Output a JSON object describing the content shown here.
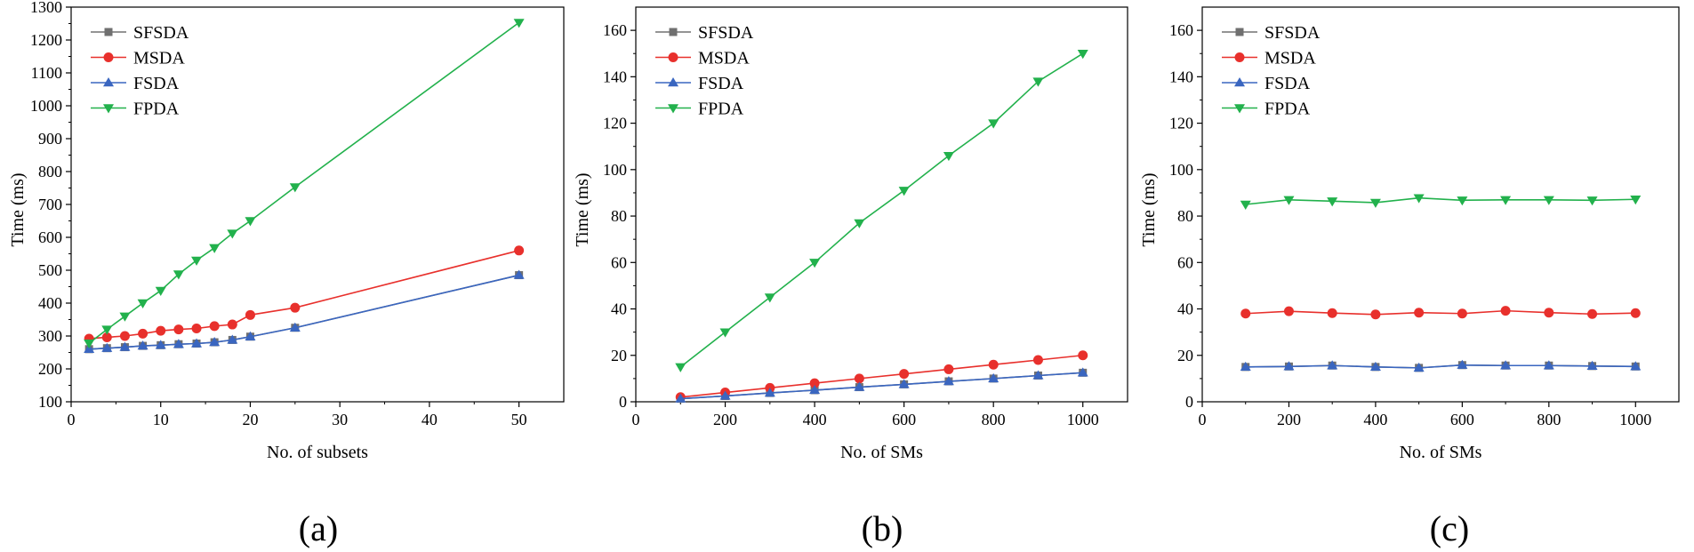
{
  "chart_data": [
    {
      "type": "line",
      "panel_label": "(a)",
      "xlabel": "No. of subsets",
      "ylabel": "Time (ms)",
      "xlim": [
        0,
        55
      ],
      "ylim": [
        100,
        1300
      ],
      "xticks": [
        0,
        10,
        20,
        30,
        40,
        50
      ],
      "yticks": [
        100,
        200,
        300,
        400,
        500,
        600,
        700,
        800,
        900,
        1000,
        1100,
        1200,
        1300
      ],
      "legend_position": "top-left",
      "series": [
        {
          "name": "SFSDA",
          "color": "#707070",
          "marker": "square",
          "x": [
            2,
            4,
            6,
            8,
            10,
            12,
            14,
            16,
            18,
            20,
            25,
            50
          ],
          "y": [
            260,
            263,
            266,
            270,
            272,
            275,
            277,
            281,
            288,
            298,
            325,
            485
          ]
        },
        {
          "name": "MSDA",
          "color": "#e8302c",
          "marker": "circle",
          "x": [
            2,
            4,
            6,
            8,
            10,
            12,
            14,
            16,
            18,
            20,
            25,
            50
          ],
          "y": [
            292,
            296,
            300,
            307,
            316,
            320,
            323,
            330,
            335,
            364,
            386,
            560
          ]
        },
        {
          "name": "FSDA",
          "color": "#3a66c0",
          "marker": "triangle-up",
          "x": [
            2,
            4,
            6,
            8,
            10,
            12,
            14,
            16,
            18,
            20,
            25,
            50
          ],
          "y": [
            260,
            263,
            266,
            270,
            272,
            275,
            277,
            281,
            288,
            298,
            325,
            485
          ]
        },
        {
          "name": "FPDA",
          "color": "#22b14c",
          "marker": "triangle-down",
          "x": [
            2,
            4,
            6,
            8,
            10,
            12,
            14,
            16,
            18,
            20,
            25,
            50
          ],
          "y": [
            278,
            320,
            360,
            400,
            438,
            488,
            530,
            568,
            612,
            650,
            753,
            1253
          ]
        }
      ]
    },
    {
      "type": "line",
      "panel_label": "(b)",
      "xlabel": "No. of SMs",
      "ylabel": "Time (ms)",
      "xlim": [
        0,
        1100
      ],
      "ylim": [
        0,
        170
      ],
      "xticks": [
        0,
        200,
        400,
        600,
        800,
        1000
      ],
      "yticks": [
        0,
        20,
        40,
        60,
        80,
        100,
        120,
        140,
        160
      ],
      "legend_position": "top-left",
      "series": [
        {
          "name": "SFSDA",
          "color": "#707070",
          "marker": "square",
          "x": [
            100,
            200,
            300,
            400,
            500,
            600,
            700,
            800,
            900,
            1000
          ],
          "y": [
            1.3,
            2.5,
            3.8,
            5.0,
            6.3,
            7.5,
            8.8,
            10.0,
            11.3,
            12.5
          ]
        },
        {
          "name": "MSDA",
          "color": "#e8302c",
          "marker": "circle",
          "x": [
            100,
            200,
            300,
            400,
            500,
            600,
            700,
            800,
            900,
            1000
          ],
          "y": [
            2,
            4,
            6,
            8,
            10,
            12,
            14,
            16,
            18,
            20
          ]
        },
        {
          "name": "FSDA",
          "color": "#3a66c0",
          "marker": "triangle-up",
          "x": [
            100,
            200,
            300,
            400,
            500,
            600,
            700,
            800,
            900,
            1000
          ],
          "y": [
            1.3,
            2.5,
            3.8,
            5.0,
            6.3,
            7.5,
            8.8,
            10.0,
            11.3,
            12.5
          ]
        },
        {
          "name": "FPDA",
          "color": "#22b14c",
          "marker": "triangle-down",
          "x": [
            100,
            200,
            300,
            400,
            500,
            600,
            700,
            800,
            900,
            1000
          ],
          "y": [
            15,
            30,
            45,
            60,
            77,
            91,
            106,
            120,
            138,
            150
          ]
        }
      ]
    },
    {
      "type": "line",
      "panel_label": "(c)",
      "xlabel": "No. of SMs",
      "ylabel": "Time (ms)",
      "xlim": [
        0,
        1100
      ],
      "ylim": [
        0,
        170
      ],
      "xticks": [
        0,
        200,
        400,
        600,
        800,
        1000
      ],
      "yticks": [
        0,
        20,
        40,
        60,
        80,
        100,
        120,
        140,
        160
      ],
      "legend_position": "top-left",
      "series": [
        {
          "name": "SFSDA",
          "color": "#707070",
          "marker": "square",
          "x": [
            100,
            200,
            300,
            400,
            500,
            600,
            700,
            800,
            900,
            1000
          ],
          "y": [
            15.0,
            15.2,
            15.6,
            15.0,
            14.6,
            15.8,
            15.6,
            15.6,
            15.4,
            15.2
          ]
        },
        {
          "name": "MSDA",
          "color": "#e8302c",
          "marker": "circle",
          "x": [
            100,
            200,
            300,
            400,
            500,
            600,
            700,
            800,
            900,
            1000
          ],
          "y": [
            38.0,
            39.0,
            38.2,
            37.6,
            38.4,
            38.0,
            39.2,
            38.4,
            37.8,
            38.2
          ]
        },
        {
          "name": "FSDA",
          "color": "#3a66c0",
          "marker": "triangle-up",
          "x": [
            100,
            200,
            300,
            400,
            500,
            600,
            700,
            800,
            900,
            1000
          ],
          "y": [
            15.0,
            15.2,
            15.6,
            15.0,
            14.6,
            15.8,
            15.6,
            15.6,
            15.4,
            15.2
          ]
        },
        {
          "name": "FPDA",
          "color": "#22b14c",
          "marker": "triangle-down",
          "x": [
            100,
            200,
            300,
            400,
            500,
            600,
            700,
            800,
            900,
            1000
          ],
          "y": [
            85.0,
            87.0,
            86.4,
            85.8,
            87.8,
            86.8,
            87.0,
            87.0,
            86.8,
            87.2
          ]
        }
      ]
    }
  ]
}
